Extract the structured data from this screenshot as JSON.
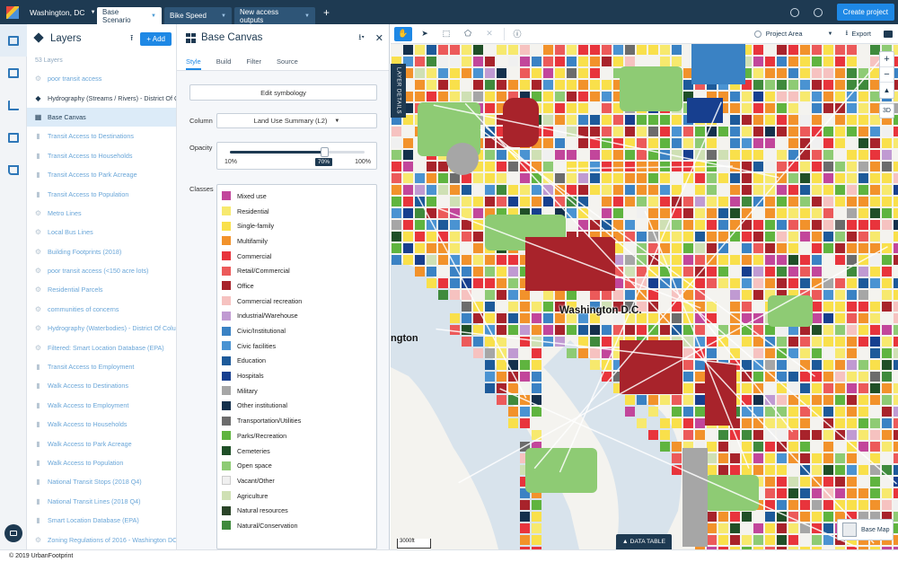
{
  "topbar": {
    "city": "Washington, DC",
    "tabs": [
      {
        "label": "Base Scenario",
        "active": true
      },
      {
        "label": "Bike Speed",
        "active": false
      },
      {
        "label": "New access outputs",
        "active": false
      }
    ],
    "create_label": "Create project",
    "help_icon": "help-circle-icon",
    "account_icon": "account-circle-icon"
  },
  "rail": {
    "items": [
      {
        "name": "map-icon",
        "active": true
      },
      {
        "name": "buildings-icon",
        "active": false
      },
      {
        "name": "chart-icon",
        "active": false
      },
      {
        "name": "table-icon",
        "active": false
      },
      {
        "name": "edit-icon",
        "active": false
      }
    ]
  },
  "layers": {
    "title": "Layers",
    "add_label": "Add",
    "count": "53 Layers",
    "items": [
      {
        "label": "poor transit access",
        "style": "light",
        "icon": "gear"
      },
      {
        "label": "Hydrography (Streams / Rivers) - District Of Columbia",
        "style": "dark",
        "icon": "stack"
      },
      {
        "label": "Base Canvas",
        "style": "selected",
        "icon": "grid"
      },
      {
        "label": "Transit Access to Destinations",
        "style": "light",
        "icon": "bars"
      },
      {
        "label": "Transit Access to Households",
        "style": "light",
        "icon": "bars"
      },
      {
        "label": "Transit Access to Park Acreage",
        "style": "light",
        "icon": "bars"
      },
      {
        "label": "Transit Access to Population",
        "style": "light",
        "icon": "bars"
      },
      {
        "label": "Metro Lines",
        "style": "light",
        "icon": "gear"
      },
      {
        "label": "Local Bus Lines",
        "style": "light",
        "icon": "gear"
      },
      {
        "label": "Building Footprints (2018)",
        "style": "light",
        "icon": "gear"
      },
      {
        "label": "poor transit access (<150 acre lots)",
        "style": "light",
        "icon": "gear"
      },
      {
        "label": "Residential Parcels",
        "style": "light",
        "icon": "gear"
      },
      {
        "label": "communities of concerns",
        "style": "light",
        "icon": "gear"
      },
      {
        "label": "Hydrography (Waterbodies) - District Of Columbia",
        "style": "light",
        "icon": "gear"
      },
      {
        "label": "Filtered: Smart Location Database (EPA)",
        "style": "light",
        "icon": "gear"
      },
      {
        "label": "Transit Access to Employment",
        "style": "light",
        "icon": "bars"
      },
      {
        "label": "Walk Access to Destinations",
        "style": "light",
        "icon": "bars"
      },
      {
        "label": "Walk Access to Employment",
        "style": "light",
        "icon": "bars"
      },
      {
        "label": "Walk Access to Households",
        "style": "light",
        "icon": "bars"
      },
      {
        "label": "Walk Access to Park Acreage",
        "style": "light",
        "icon": "bars"
      },
      {
        "label": "Walk Access to Population",
        "style": "light",
        "icon": "bars"
      },
      {
        "label": "National Transit Stops (2018 Q4)",
        "style": "light",
        "icon": "bars"
      },
      {
        "label": "National Transit Lines (2018 Q4)",
        "style": "light",
        "icon": "bars"
      },
      {
        "label": "Smart Location Database (EPA)",
        "style": "light",
        "icon": "bars"
      },
      {
        "label": "Zoning Regulations of 2016 - Washington DC",
        "style": "light",
        "icon": "gear"
      }
    ]
  },
  "canvas_panel": {
    "title": "Base Canvas",
    "tabs": [
      "Style",
      "Build",
      "Filter",
      "Source"
    ],
    "active_tab": "Style",
    "edit_symbology": "Edit symbology",
    "column_label": "Column",
    "column_value": "Land Use Summary (L2)",
    "opacity_label": "Opacity",
    "opacity_min": "10%",
    "opacity_max": "100%",
    "opacity_value": "70%",
    "opacity_fraction": 0.7,
    "classes_label": "Classes",
    "classes": [
      {
        "label": "Mixed use",
        "color": "#c2469b"
      },
      {
        "label": "Residential",
        "color": "#f7e96e"
      },
      {
        "label": "Single-family",
        "color": "#f9e04b"
      },
      {
        "label": "Multifamily",
        "color": "#f2922b"
      },
      {
        "label": "Commercial",
        "color": "#e8343c"
      },
      {
        "label": "Retail/Commercial",
        "color": "#ec5a5a"
      },
      {
        "label": "Office",
        "color": "#a8232b"
      },
      {
        "label": "Commercial recreation",
        "color": "#f6c2c0"
      },
      {
        "label": "Industrial/Warehouse",
        "color": "#c09ad2"
      },
      {
        "label": "Civic/Institutional",
        "color": "#3a82c4"
      },
      {
        "label": "Civic facilities",
        "color": "#4a93d2"
      },
      {
        "label": "Education",
        "color": "#1d5a9a"
      },
      {
        "label": "Hospitals",
        "color": "#173f8f"
      },
      {
        "label": "Military",
        "color": "#a6a6a6"
      },
      {
        "label": "Other institutional",
        "color": "#14304c"
      },
      {
        "label": "Transportation/Utilities",
        "color": "#6c6c6c"
      },
      {
        "label": "Parks/Recreation",
        "color": "#5fb43f"
      },
      {
        "label": "Cemeteries",
        "color": "#1f4f27"
      },
      {
        "label": "Open space",
        "color": "#8ecb74"
      },
      {
        "label": "Vacant/Other",
        "color": "#f0f0f0"
      },
      {
        "label": "Agriculture",
        "color": "#cfe0b4"
      },
      {
        "label": "Natural resources",
        "color": "#2a4428"
      },
      {
        "label": "Natural/Conservation",
        "color": "#3f8a3c"
      }
    ]
  },
  "map": {
    "layer_details": "LAYER DETAILS",
    "project_area": "Project Area",
    "export_label": "Export",
    "city_label": "Washington D.C.",
    "partial_label": "ngton",
    "scale": "3000ft",
    "data_table": "DATA TABLE",
    "basemap": "Base Map",
    "btn_3d": "3D",
    "zoom_in": "+",
    "zoom_out": "−",
    "reset_north": "▲",
    "tools": [
      "pan-hand-icon",
      "select-arrow-icon",
      "box-select-icon",
      "polygon-icon",
      "clear-icon",
      "info-icon"
    ]
  },
  "footer": {
    "copyright": "© 2019 UrbanFootprint"
  }
}
